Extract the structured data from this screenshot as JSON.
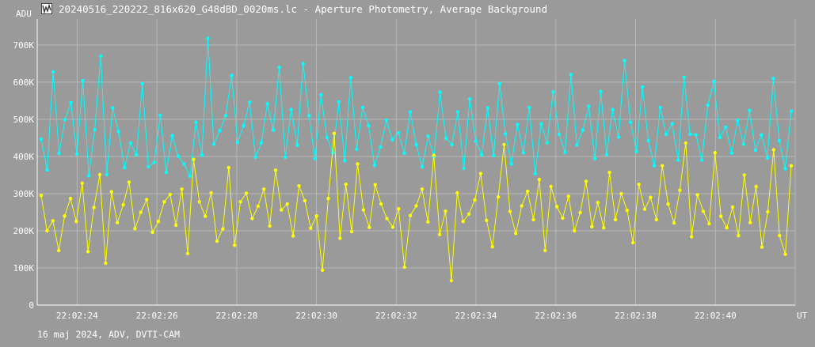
{
  "window": {
    "title": "20240516_220222_816x620_G48dBD_0020ms.lc - Aperture Photometry, Average Background",
    "icon": "lightcurve-app-icon"
  },
  "footer": {
    "caption": "16 maj 2024, ADV, DVTI-CAM"
  },
  "chart_data": {
    "type": "line",
    "ylabel": "ADU",
    "xlabel": "UT",
    "ylim": [
      0,
      770000
    ],
    "y_ticks": [
      0,
      100000,
      200000,
      300000,
      400000,
      500000,
      600000,
      700000
    ],
    "y_tick_labels": [
      "0",
      "100K",
      "200K",
      "300K",
      "400K",
      "500K",
      "600K",
      "700K"
    ],
    "xlim": [
      "22:02:23.0",
      "22:02:42.0"
    ],
    "x_ticks": [
      24,
      26,
      28,
      30,
      32,
      34,
      36,
      38,
      40
    ],
    "x_tick_labels": [
      "22:02:24",
      "22:02:26",
      "22:02:28",
      "22:02:30",
      "22:02:32",
      "22:02:34",
      "22:02:36",
      "22:02:38",
      "22:02:40"
    ],
    "grid": true,
    "background_color": "#9a9a9a",
    "grid_color": "#b8b8b8",
    "series": [
      {
        "color": "#00ffff",
        "sampling": "approx. every 0.1 s",
        "values": [
          447000,
          364000,
          628000,
          408000,
          499000,
          545000,
          406000,
          604000,
          348000,
          472000,
          670000,
          351000,
          531000,
          467000,
          370000,
          436000,
          404000,
          596000,
          372000,
          384000,
          511000,
          357000,
          456000,
          401000,
          380000,
          347000,
          492000,
          403000,
          718000,
          433000,
          469000,
          510000,
          618000,
          438000,
          483000,
          546000,
          398000,
          437000,
          542000,
          471000,
          640000,
          398000,
          526000,
          430000,
          650000,
          510000,
          394000,
          566000,
          451000,
          410000,
          547000,
          389000,
          612000,
          419000,
          532000,
          483000,
          376000,
          425000,
          498000,
          445000,
          464000,
          409000,
          520000,
          432000,
          372000,
          455000,
          399000,
          573000,
          449000,
          432000,
          520000,
          368000,
          555000,
          441000,
          404000,
          531000,
          402000,
          596000,
          461000,
          380000,
          486000,
          410000,
          532000,
          354000,
          488000,
          437000,
          574000,
          460000,
          411000,
          620000,
          431000,
          471000,
          535000,
          394000,
          575000,
          405000,
          526000,
          452000,
          658000,
          492000,
          413000,
          587000,
          442000,
          375000,
          532000,
          459000,
          488000,
          390000,
          613000,
          460000,
          458000,
          390000,
          538000,
          602000,
          451000,
          479000,
          409000,
          498000,
          433000,
          524000,
          417000,
          458000,
          396000,
          610000,
          443000,
          367000,
          522000
        ]
      },
      {
        "color": "#ffff00",
        "sampling": "approx. every 0.1 s",
        "values": [
          295000,
          200000,
          227000,
          147000,
          240000,
          287000,
          225000,
          328000,
          144000,
          263000,
          351000,
          113000,
          305000,
          222000,
          270000,
          331000,
          206000,
          250000,
          284000,
          196000,
          225000,
          278000,
          298000,
          215000,
          312000,
          139000,
          392000,
          278000,
          239000,
          302000,
          172000,
          205000,
          370000,
          161000,
          278000,
          301000,
          233000,
          266000,
          312000,
          213000,
          363000,
          256000,
          272000,
          186000,
          321000,
          281000,
          207000,
          240000,
          94000,
          287000,
          462000,
          180000,
          325000,
          198000,
          380000,
          256000,
          209000,
          324000,
          272000,
          233000,
          210000,
          259000,
          102000,
          241000,
          267000,
          312000,
          224000,
          403000,
          190000,
          253000,
          66000,
          302000,
          225000,
          245000,
          283000,
          354000,
          228000,
          157000,
          291000,
          432000,
          252000,
          193000,
          267000,
          306000,
          230000,
          338000,
          147000,
          319000,
          265000,
          234000,
          293000,
          200000,
          249000,
          333000,
          211000,
          276000,
          208000,
          357000,
          230000,
          300000,
          255000,
          168000,
          325000,
          258000,
          290000,
          230000,
          375000,
          272000,
          221000,
          309000,
          436000,
          184000,
          297000,
          252000,
          219000,
          410000,
          239000,
          208000,
          264000,
          187000,
          350000,
          222000,
          319000,
          156000,
          251000,
          418000,
          187000,
          137000,
          375000
        ]
      }
    ]
  }
}
